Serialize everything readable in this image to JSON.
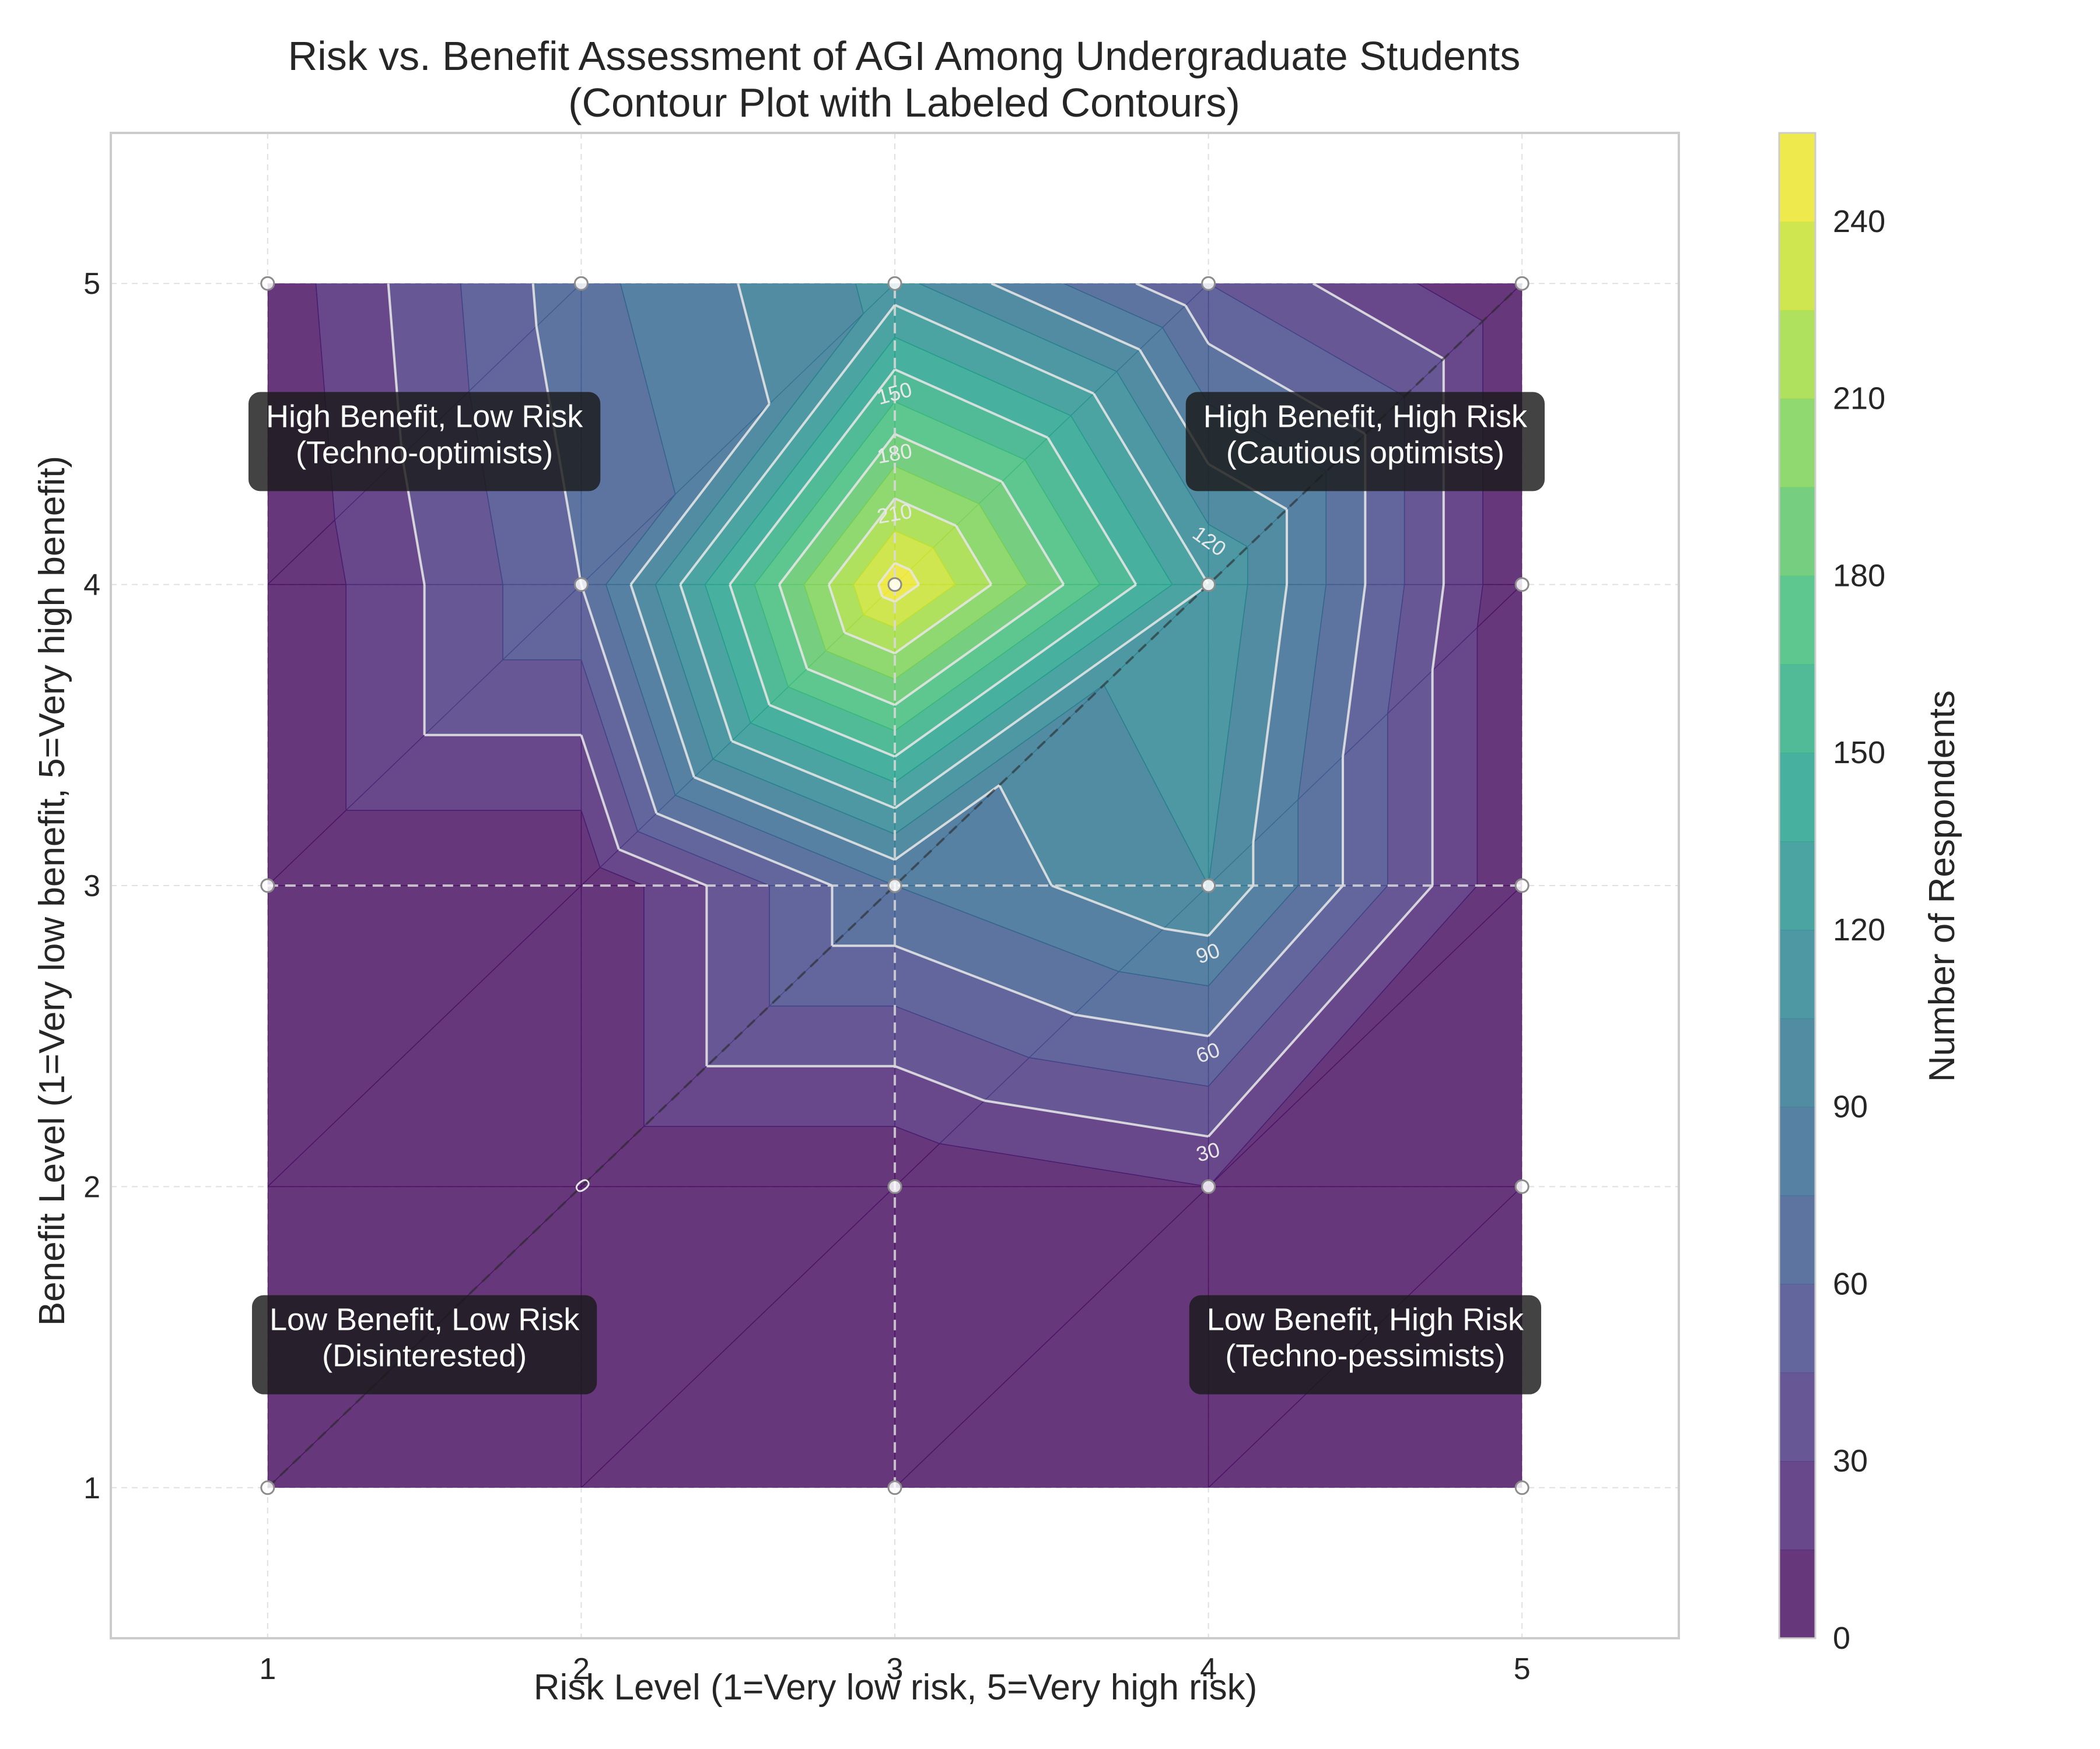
{
  "chart_data": {
    "type": "contour",
    "title_lines": [
      "Risk vs. Benefit Assessment of AGI Among Undergraduate Students",
      "(Contour Plot with Labeled Contours)"
    ],
    "xlabel": "Risk Level (1=Very low risk, 5=Very high risk)",
    "ylabel": "Benefit Level (1=Very low benefit, 5=Very high benefit)",
    "xlim": [
      0.5,
      5.5
    ],
    "ylim": [
      0.5,
      5.5
    ],
    "x_ticks": [
      1,
      2,
      3,
      4,
      5
    ],
    "y_ticks": [
      1,
      2,
      3,
      4,
      5
    ],
    "grid": true,
    "x": [
      1,
      2,
      3,
      4,
      5
    ],
    "y": [
      1,
      2,
      3,
      4,
      5
    ],
    "z": [
      [
        0,
        0,
        0,
        0,
        0
      ],
      [
        0,
        0,
        0,
        15,
        0
      ],
      [
        0,
        0,
        75,
        105,
        0
      ],
      [
        0,
        60,
        250,
        120,
        0
      ],
      [
        5,
        70,
        110,
        45,
        0
      ]
    ],
    "contour_levels": [
      0,
      30,
      60,
      90,
      120,
      150,
      180,
      210,
      240
    ],
    "contour_labels": [
      {
        "text": "0",
        "x": 2.0,
        "y": 2.0,
        "angle": 52
      },
      {
        "text": "30",
        "x": 4.0,
        "y": 2.11,
        "angle": -15
      },
      {
        "text": "60",
        "x": 4.0,
        "y": 2.44,
        "angle": -20
      },
      {
        "text": "90",
        "x": 4.0,
        "y": 2.77,
        "angle": -20
      },
      {
        "text": "120",
        "x": 4.0,
        "y": 4.14,
        "angle": 36
      },
      {
        "text": "150",
        "x": 3.0,
        "y": 4.63,
        "angle": -15
      },
      {
        "text": "180",
        "x": 3.0,
        "y": 4.43,
        "angle": -10
      },
      {
        "text": "210",
        "x": 3.0,
        "y": 4.23,
        "angle": -10
      }
    ],
    "reference_lines": {
      "x_mid": 3,
      "y_mid": 3,
      "diagonal": [
        [
          1,
          1
        ],
        [
          5,
          5
        ]
      ]
    },
    "quadrant_labels": [
      {
        "line1": "High Benefit, Low Risk",
        "line2": "(Techno-optimists)",
        "x": 1.5,
        "y": 4.5
      },
      {
        "line1": "High Benefit, High Risk",
        "line2": "(Cautious optimists)",
        "x": 4.5,
        "y": 4.5
      },
      {
        "line1": "Low Benefit, Low Risk",
        "line2": "(Disinterested)",
        "x": 1.5,
        "y": 1.5
      },
      {
        "line1": "Low Benefit, High Risk",
        "line2": "(Techno-pessimists)",
        "x": 4.5,
        "y": 1.5
      }
    ],
    "colorbar": {
      "label": "Number of Respondents",
      "min": 0,
      "max": 255,
      "ticks": [
        0,
        30,
        60,
        90,
        120,
        150,
        180,
        210,
        240
      ],
      "bands": 17
    },
    "colormap": "viridis",
    "colors": {
      "grid": "#e0e0e0",
      "contour_line": "#e6e6e6",
      "reference_line": "#d9d9d9",
      "diagonal_line": "#303030",
      "annotation_bg": "#1a1a1a"
    }
  }
}
